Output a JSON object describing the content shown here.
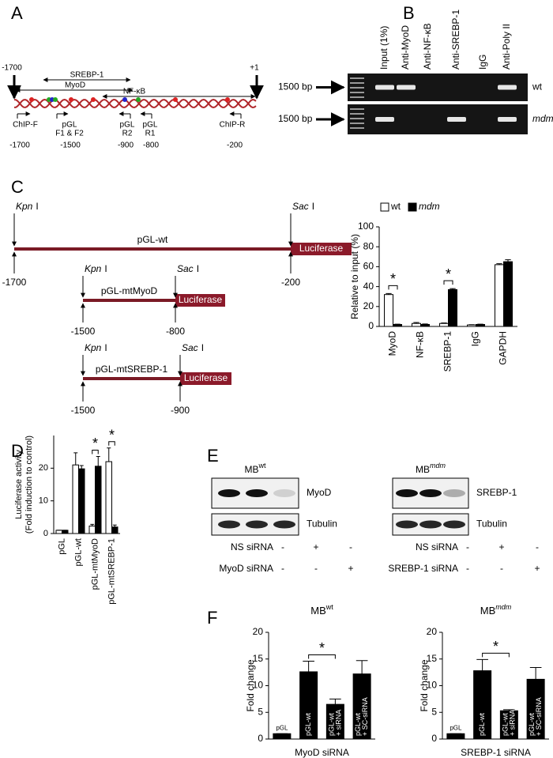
{
  "panel_labels": [
    "A",
    "B",
    "C",
    "D",
    "E",
    "F"
  ],
  "promoter_map": {
    "labels": [
      "-1700",
      "+1",
      "SREBP-1",
      "MyoD",
      "NF-κB",
      "ChIP-F",
      "pGL",
      "F1 & F2",
      "pGL",
      "R2",
      "pGL",
      "R1",
      "ChIP-R",
      "-1700",
      "-1500",
      "-900",
      "-800",
      "-200"
    ]
  },
  "gel": {
    "lanes": [
      "Input (1%)",
      "Anti-MyoD",
      "Anti-NF-κB",
      "Anti-SREBP-1",
      "IgG",
      "Anti-Poly II"
    ],
    "rows": [
      {
        "size": "1500 bp",
        "genotype": "wt"
      },
      {
        "size": "1500 bp",
        "genotype": "mdm"
      }
    ]
  },
  "constructs": [
    {
      "left_enzyme": "Kpn",
      "left_suffix": "I",
      "right_enzyme": "Sac",
      "right_suffix": "I",
      "name": "pGL-wt",
      "reporter": "Luciferase",
      "left_pos": "-1700",
      "right_pos": "-200"
    },
    {
      "left_enzyme": "Kpn",
      "left_suffix": "I",
      "right_enzyme": "Sac",
      "right_suffix": "I",
      "name": "pGL-mtMyoD",
      "reporter": "Luciferase",
      "left_pos": "-1500",
      "right_pos": "-800"
    },
    {
      "left_enzyme": "Kpn",
      "left_suffix": "I",
      "right_enzyme": "Sac",
      "right_suffix": "I",
      "name": "pGL-mtSREBP-1",
      "reporter": "Luciferase",
      "left_pos": "-1500",
      "right_pos": "-900"
    }
  ],
  "blots": [
    {
      "title": "MB",
      "title_sup": "wt",
      "bands": [
        "MyoD",
        "Tubulin"
      ],
      "rows": [
        {
          "label": "NS siRNA",
          "signs": [
            "-",
            "+",
            "-"
          ]
        },
        {
          "label": "MyoD siRNA",
          "signs": [
            "-",
            "-",
            "+"
          ]
        }
      ]
    },
    {
      "title": "MB",
      "title_sup": "mdm",
      "bands": [
        "SREBP-1",
        "Tubulin"
      ],
      "rows": [
        {
          "label": "NS siRNA",
          "signs": [
            "-",
            "+",
            "-"
          ]
        },
        {
          "label": "SREBP-1 siRNA",
          "signs": [
            "-",
            "-",
            "+"
          ]
        }
      ]
    }
  ],
  "chart_data": [
    {
      "type": "bar",
      "ylabel": "Relative to input (%)",
      "categories": [
        "MyoD",
        "NF-κB",
        "SREBP-1",
        "IgG",
        "GAPDH"
      ],
      "series": [
        {
          "name": "wt",
          "color": "#ffffff",
          "values": [
            32,
            3,
            3,
            1.5,
            62
          ],
          "errors": [
            1,
            1,
            0.5,
            0.3,
            1
          ]
        },
        {
          "name": "mdm",
          "color": "#000000",
          "values": [
            2,
            2,
            37,
            2,
            65
          ],
          "errors": [
            0.3,
            0.5,
            1,
            0.3,
            2
          ]
        }
      ],
      "ylim": [
        0,
        100
      ],
      "yticks": [
        0,
        20,
        40,
        60,
        80,
        100
      ],
      "annotations": [
        {
          "text": "*"
        },
        {
          "text": "*"
        }
      ]
    },
    {
      "type": "bar",
      "ylabel": [
        "Luciferase activity",
        "(Fold induction to control)"
      ],
      "categories": [
        "pGL",
        "pGL-wt",
        "pGL-mtMyoD",
        "pGL-mtSREBP-1"
      ],
      "series": [
        {
          "color": "#ffffff",
          "values": [
            1,
            21,
            2.3,
            22
          ],
          "errors": [
            0,
            3.7,
            0.5,
            4.2
          ]
        },
        {
          "color": "#000000",
          "values": [
            1,
            19.8,
            20.6,
            2
          ],
          "errors": [
            0,
            1,
            3,
            0.6
          ]
        }
      ],
      "ylim": [
        0,
        30
      ],
      "yticks": [
        0,
        10,
        20
      ],
      "annotations": [
        {
          "text": "*"
        },
        {
          "text": "*"
        }
      ]
    },
    {
      "type": "bar",
      "title": "MB",
      "title_sup": "wt",
      "ylabel": "Fold change",
      "xlabel": "MyoD siRNA",
      "categories": [
        [
          "pGL"
        ],
        [
          "pGL-wt"
        ],
        [
          "pGL-wt",
          "+ siRNA"
        ],
        [
          "pGL-wt",
          "+ SC-siRNA"
        ]
      ],
      "color": "#000000",
      "values": [
        1,
        12.6,
        6.5,
        12.2
      ],
      "errors": [
        0,
        2,
        1,
        2.5
      ],
      "ylim": [
        0,
        20
      ],
      "yticks": [
        0,
        5,
        10,
        15,
        20
      ],
      "annotations": [
        {
          "text": "*"
        }
      ]
    },
    {
      "type": "bar",
      "title": "MB",
      "title_sup": "mdm",
      "ylabel": "Fold change",
      "xlabel": "SREBP-1 siRNA",
      "categories": [
        [
          "pGL"
        ],
        [
          "pGL-wt"
        ],
        [
          "pGL-wt",
          "+ siRNA"
        ],
        [
          "pGL-wt",
          "+ SC-siRNA"
        ]
      ],
      "color": "#000000",
      "values": [
        1,
        12.8,
        5.3,
        11.2
      ],
      "errors": [
        0,
        2.1,
        0.2,
        2.2
      ],
      "ylim": [
        0,
        20
      ],
      "yticks": [
        0,
        5,
        10,
        15,
        20
      ],
      "annotations": [
        {
          "text": "*"
        }
      ]
    }
  ]
}
